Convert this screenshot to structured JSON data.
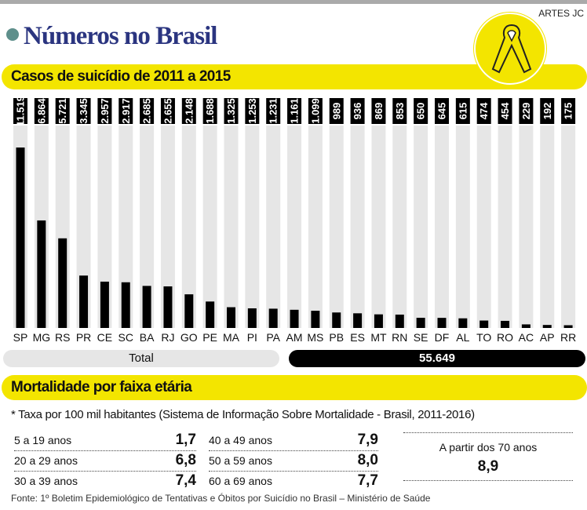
{
  "credit": "ARTES JC",
  "title": "Números no Brasil",
  "section1": "Casos de suicídio de 2011 a 2015",
  "chart_data": {
    "type": "bar",
    "title": "Casos de suicídio de 2011 a 2015",
    "categories": [
      "SP",
      "MG",
      "RS",
      "PR",
      "CE",
      "SC",
      "BA",
      "RJ",
      "GO",
      "PE",
      "MA",
      "PI",
      "PA",
      "AM",
      "MS",
      "PB",
      "ES",
      "MT",
      "RN",
      "SE",
      "DF",
      "AL",
      "TO",
      "RO",
      "AC",
      "AP",
      "RR"
    ],
    "values": [
      11519,
      6864,
      5721,
      3345,
      2957,
      2917,
      2685,
      2655,
      2148,
      1688,
      1325,
      1253,
      1231,
      1161,
      1099,
      989,
      936,
      869,
      853,
      650,
      645,
      615,
      474,
      454,
      229,
      192,
      175
    ],
    "labels": [
      "11.519",
      "6.864",
      "5.721",
      "3.345",
      "2.957",
      "2.917",
      "2.685",
      "2.655",
      "2.148",
      "1.688",
      "1.325",
      "1.253",
      "1.231",
      "1.161",
      "1.099",
      "989",
      "936",
      "869",
      "853",
      "650",
      "645",
      "615",
      "474",
      "454",
      "229",
      "192",
      "175"
    ],
    "ylim": [
      0,
      12500
    ],
    "bar_color": "#000000",
    "track_color": "#e6e6e6"
  },
  "total": {
    "label": "Total",
    "value": "55.649"
  },
  "section2": "Mortalidade por faixa etária",
  "note": "* Taxa por 100 mil habitantes (Sistema de Informação Sobre Mortalidade - Brasil, 2011-2016)",
  "ages": [
    {
      "label": "5 a 19 anos",
      "value": "1,7"
    },
    {
      "label": "20 a 29 anos",
      "value": "6,8"
    },
    {
      "label": "30 a 39 anos",
      "value": "7,4"
    },
    {
      "label": "40 a 49 anos",
      "value": "7,9"
    },
    {
      "label": "50 a 59 anos",
      "value": "8,0"
    },
    {
      "label": "60 a 69 anos",
      "value": "7,7"
    }
  ],
  "over70": {
    "label": "A partir dos 70 anos",
    "value": "8,9"
  },
  "source": "Fonte: 1º Boletim Epidemiológico de Tentativas e Óbitos por Suicídio no Brasil – Ministério de Saúde",
  "colors": {
    "accent": "#f3e500",
    "title": "#2b3580",
    "dot": "#5e8f8b"
  }
}
